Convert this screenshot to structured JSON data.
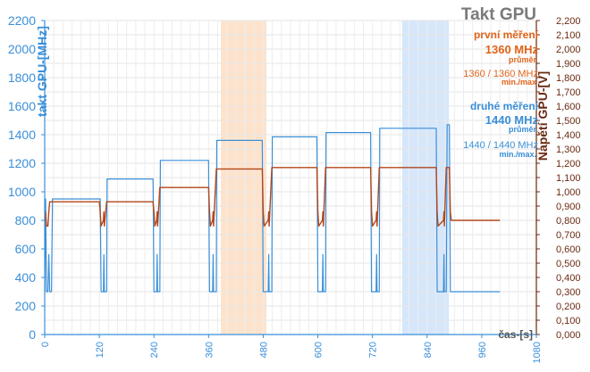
{
  "chart_data": {
    "type": "line",
    "title": "Takt GPU",
    "left_axis": {
      "label": "takt GPU-[MHz]",
      "min": 0,
      "max": 2200,
      "ticks": [
        0,
        200,
        400,
        600,
        800,
        1000,
        1200,
        1400,
        1600,
        1800,
        2000,
        2200
      ]
    },
    "right_axis": {
      "label": "Napětí GPU-[V]",
      "min": 0,
      "max": 2.2,
      "tick_labels": [
        "0,000",
        "0,100",
        "0,200",
        "0,300",
        "0,400",
        "0,500",
        "0,600",
        "0,700",
        "0,800",
        "0,900",
        "1,000",
        "1,100",
        "1,200",
        "1,300",
        "1,400",
        "1,500",
        "1,600",
        "1,700",
        "1,800",
        "1,900",
        "2,000",
        "2,100",
        "2,200"
      ]
    },
    "x_axis": {
      "label": "čas-[s]",
      "min": 0,
      "max": 1080,
      "ticks": [
        0,
        120,
        240,
        360,
        480,
        600,
        720,
        840,
        960,
        1080
      ]
    },
    "grid": true,
    "highlights": [
      {
        "from": 387,
        "to": 487,
        "color": "#fde3cc"
      },
      {
        "from": 785,
        "to": 888,
        "color": "#d6e7fb"
      }
    ],
    "series": [
      {
        "name": "takt GPU",
        "axis": "left",
        "color": "#3a8fd8",
        "points": [
          [
            0,
            300
          ],
          [
            2,
            950
          ],
          [
            4,
            300
          ],
          [
            7,
            300
          ],
          [
            9,
            560
          ],
          [
            11,
            300
          ],
          [
            15,
            300
          ],
          [
            17,
            950
          ],
          [
            122,
            950
          ],
          [
            124,
            300
          ],
          [
            129,
            300
          ],
          [
            130,
            560
          ],
          [
            131,
            300
          ],
          [
            136,
            300
          ],
          [
            137,
            1090
          ],
          [
            238,
            1090
          ],
          [
            240,
            300
          ],
          [
            246,
            300
          ],
          [
            247,
            560
          ],
          [
            248,
            300
          ],
          [
            253,
            300
          ],
          [
            254,
            1220
          ],
          [
            360,
            1220
          ],
          [
            362,
            300
          ],
          [
            369,
            300
          ],
          [
            370,
            560
          ],
          [
            371,
            300
          ],
          [
            377,
            300
          ],
          [
            378,
            1360
          ],
          [
            478,
            1360
          ],
          [
            480,
            300
          ],
          [
            491,
            300
          ],
          [
            492,
            560
          ],
          [
            493,
            300
          ],
          [
            499,
            300
          ],
          [
            500,
            1385
          ],
          [
            598,
            1385
          ],
          [
            600,
            300
          ],
          [
            610,
            300
          ],
          [
            611,
            560
          ],
          [
            612,
            300
          ],
          [
            617,
            300
          ],
          [
            618,
            1415
          ],
          [
            716,
            1415
          ],
          [
            718,
            300
          ],
          [
            728,
            300
          ],
          [
            729,
            560
          ],
          [
            730,
            300
          ],
          [
            735,
            300
          ],
          [
            736,
            1445
          ],
          [
            860,
            1445
          ],
          [
            862,
            300
          ],
          [
            876,
            300
          ],
          [
            877,
            560
          ],
          [
            878,
            300
          ],
          [
            882,
            300
          ],
          [
            884,
            1470
          ],
          [
            889,
            1470
          ],
          [
            891,
            300
          ],
          [
            1000,
            300
          ]
        ]
      },
      {
        "name": "napětí GPU",
        "axis": "right",
        "color": "#b3461a",
        "points": [
          [
            0,
            0.8
          ],
          [
            2,
            0.86
          ],
          [
            4,
            0.76
          ],
          [
            7,
            0.76
          ],
          [
            9,
            0.86
          ],
          [
            11,
            0.93
          ],
          [
            60,
            0.93
          ],
          [
            120,
            0.93
          ],
          [
            122,
            0.86
          ],
          [
            124,
            0.76
          ],
          [
            129,
            0.8
          ],
          [
            130,
            0.86
          ],
          [
            131,
            0.76
          ],
          [
            136,
            0.93
          ],
          [
            180,
            0.93
          ],
          [
            238,
            0.93
          ],
          [
            240,
            0.86
          ],
          [
            242,
            0.76
          ],
          [
            246,
            0.8
          ],
          [
            247,
            0.86
          ],
          [
            248,
            0.76
          ],
          [
            253,
            1.03
          ],
          [
            300,
            1.03
          ],
          [
            360,
            1.03
          ],
          [
            362,
            0.86
          ],
          [
            364,
            0.76
          ],
          [
            369,
            0.8
          ],
          [
            370,
            0.86
          ],
          [
            371,
            0.76
          ],
          [
            377,
            1.16
          ],
          [
            430,
            1.16
          ],
          [
            478,
            1.16
          ],
          [
            480,
            0.86
          ],
          [
            482,
            0.76
          ],
          [
            491,
            0.8
          ],
          [
            492,
            0.86
          ],
          [
            493,
            0.76
          ],
          [
            499,
            1.17
          ],
          [
            550,
            1.17
          ],
          [
            598,
            1.17
          ],
          [
            600,
            0.86
          ],
          [
            602,
            0.76
          ],
          [
            610,
            0.8
          ],
          [
            611,
            0.86
          ],
          [
            612,
            0.76
          ],
          [
            617,
            1.17
          ],
          [
            670,
            1.17
          ],
          [
            716,
            1.17
          ],
          [
            718,
            0.86
          ],
          [
            720,
            0.76
          ],
          [
            728,
            0.8
          ],
          [
            729,
            0.86
          ],
          [
            730,
            0.76
          ],
          [
            735,
            1.17
          ],
          [
            800,
            1.17
          ],
          [
            860,
            1.17
          ],
          [
            862,
            0.86
          ],
          [
            864,
            0.76
          ],
          [
            876,
            0.8
          ],
          [
            877,
            0.86
          ],
          [
            878,
            0.76
          ],
          [
            882,
            1.17
          ],
          [
            889,
            1.17
          ],
          [
            891,
            0.86
          ],
          [
            893,
            0.8
          ],
          [
            1000,
            0.8
          ]
        ]
      }
    ],
    "legend": {
      "title": "Takt GPU",
      "first_head": "první měření",
      "first_avg": "1360 MHz",
      "first_avg_caption": "průměr",
      "first_range": "1360 / 1360 MHz",
      "first_range_caption": "min./max",
      "second_head": "druhé měření",
      "second_avg": "1440 MHz",
      "second_avg_caption": "průměr",
      "second_range": "1440 / 1440 MHz",
      "second_range_caption": "min./max."
    }
  }
}
